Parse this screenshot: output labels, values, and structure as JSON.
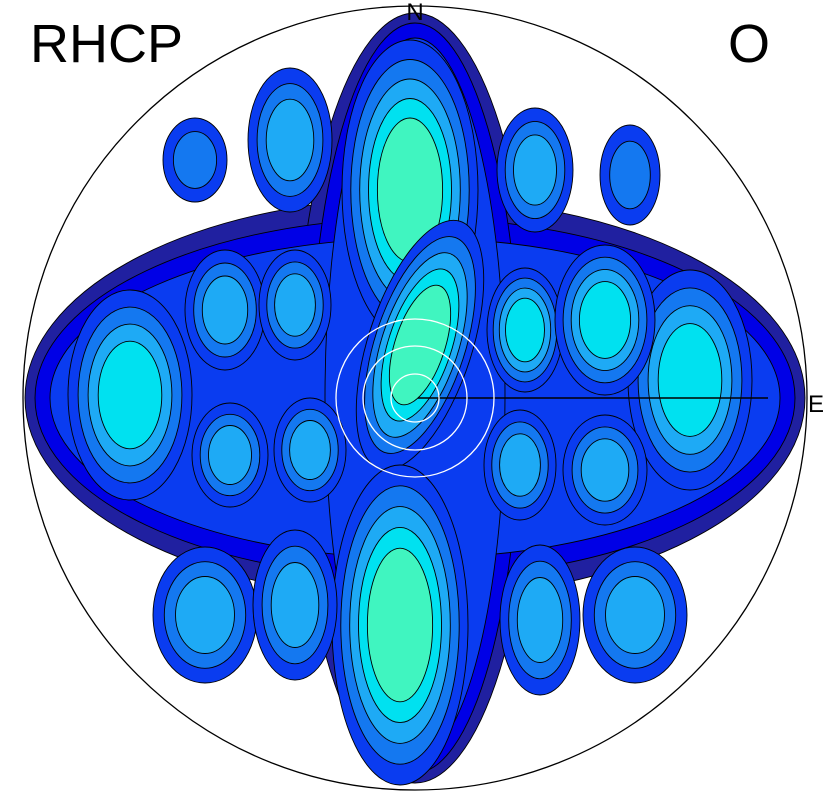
{
  "chart_data": {
    "type": "heatmap",
    "projection": "polar-sky",
    "polarization_label": "RHCP",
    "sense_label": "O",
    "compass": {
      "north": "N",
      "east": "E"
    },
    "outline_circle": true,
    "grid": false,
    "colorscale": [
      "#2020a0",
      "#0000e6",
      "#0a3cf0",
      "#1478f0",
      "#1eaaf5",
      "#00e1f0",
      "#40f5c0"
    ],
    "levels": [
      1,
      2,
      3,
      4,
      5,
      6,
      7
    ],
    "lobes": [
      {
        "region": "north-center",
        "peak_level": 7
      },
      {
        "region": "center",
        "peak_level": 7
      },
      {
        "region": "south-center",
        "peak_level": 7
      },
      {
        "region": "east-center",
        "peak_level": 6
      },
      {
        "region": "east",
        "peak_level": 6
      },
      {
        "region": "west",
        "peak_level": 6
      },
      {
        "region": "north-east",
        "peak_level": 6
      },
      {
        "region": "north-west",
        "peak_level": 5
      },
      {
        "region": "south-west",
        "peak_level": 5
      },
      {
        "region": "south-east",
        "peak_level": 5
      }
    ]
  }
}
